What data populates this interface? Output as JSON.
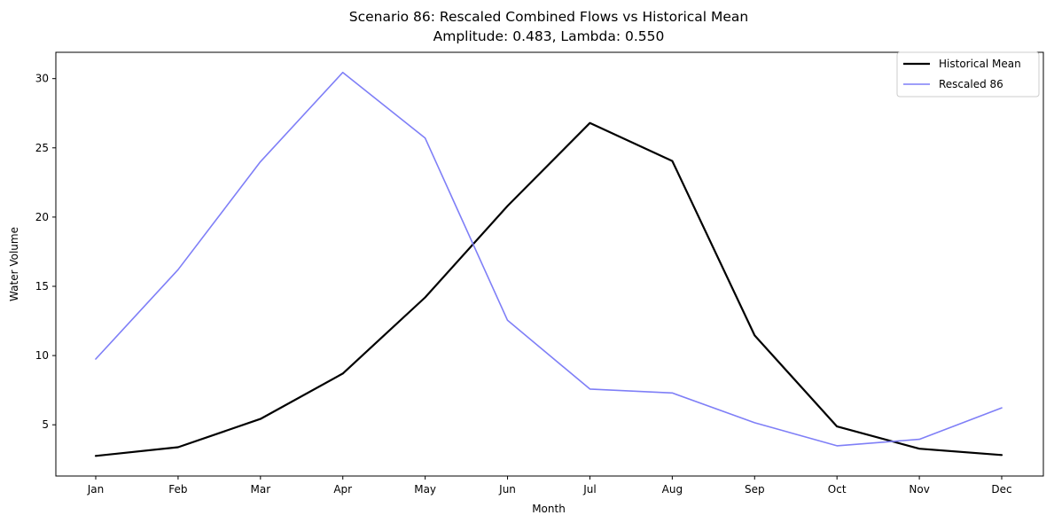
{
  "chart_data": {
    "type": "line",
    "title": "Scenario 86: Rescaled Combined Flows vs Historical Mean",
    "subtitle": "Amplitude: 0.483, Lambda: 0.550",
    "xlabel": "Month",
    "ylabel": "Water Volume",
    "categories": [
      "Jan",
      "Feb",
      "Mar",
      "Apr",
      "May",
      "Jun",
      "Jul",
      "Aug",
      "Sep",
      "Oct",
      "Nov",
      "Dec"
    ],
    "yticks": [
      5,
      10,
      15,
      20,
      25,
      30
    ],
    "ylim": [
      1.3,
      31.9
    ],
    "grid": false,
    "legend_position": "top-right",
    "series": [
      {
        "name": "Historical Mean",
        "color": "#000000",
        "values": [
          2.75,
          3.38,
          5.42,
          8.7,
          14.2,
          20.8,
          26.8,
          24.05,
          11.45,
          4.88,
          3.27,
          2.82
        ]
      },
      {
        "name": "Rescaled 86",
        "color": "#7f7ff7",
        "values": [
          9.75,
          16.2,
          24.0,
          30.45,
          25.7,
          12.55,
          7.58,
          7.3,
          5.15,
          3.48,
          3.95,
          6.22
        ]
      }
    ]
  }
}
